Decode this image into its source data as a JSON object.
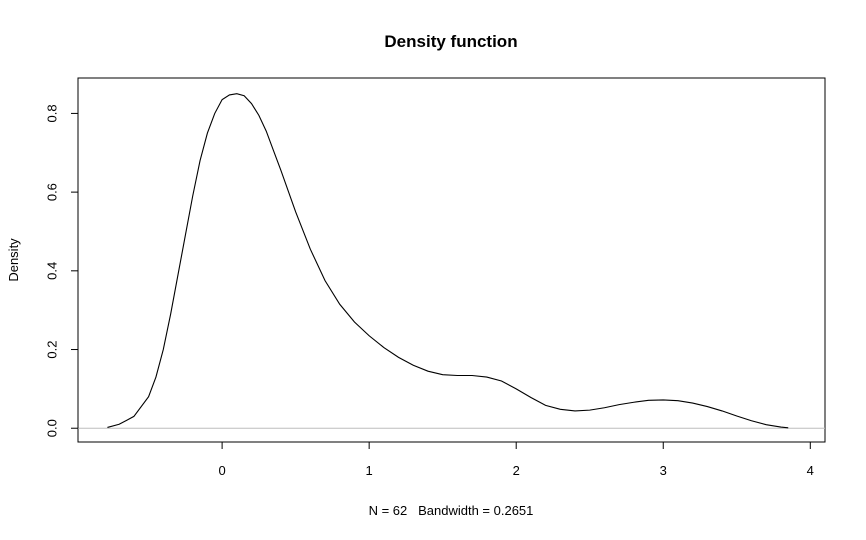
{
  "chart_data": {
    "type": "line",
    "title": "Density function",
    "xlabel": "N = 62   Bandwidth = 0.2651",
    "ylabel": "Density",
    "xlim": [
      -0.98,
      4.1
    ],
    "ylim": [
      -0.035,
      0.89
    ],
    "x_ticks": [
      "0",
      "1",
      "2",
      "3",
      "4"
    ],
    "x_tick_values": [
      0,
      1,
      2,
      3,
      4
    ],
    "y_ticks": [
      "0.0",
      "0.2",
      "0.4",
      "0.6",
      "0.8"
    ],
    "y_tick_values": [
      0,
      0.2,
      0.4,
      0.6,
      0.8
    ],
    "grid": false,
    "baseline_y": 0,
    "baseline_color": "#bebebe",
    "line_color": "#000000",
    "series": [
      {
        "x": [
          -0.78,
          -0.7,
          -0.6,
          -0.5,
          -0.45,
          -0.4,
          -0.35,
          -0.3,
          -0.25,
          -0.2,
          -0.15,
          -0.1,
          -0.05,
          0,
          0.05,
          0.1,
          0.15,
          0.2,
          0.25,
          0.3,
          0.35,
          0.4,
          0.5,
          0.6,
          0.7,
          0.8,
          0.9,
          1.0,
          1.1,
          1.2,
          1.3,
          1.4,
          1.5,
          1.6,
          1.7,
          1.8,
          1.9,
          2.0,
          2.1,
          2.2,
          2.3,
          2.4,
          2.5,
          2.6,
          2.7,
          2.8,
          2.9,
          3.0,
          3.1,
          3.2,
          3.3,
          3.4,
          3.5,
          3.6,
          3.7,
          3.8,
          3.85
        ],
        "y": [
          0.002,
          0.01,
          0.03,
          0.08,
          0.13,
          0.2,
          0.29,
          0.39,
          0.49,
          0.59,
          0.68,
          0.75,
          0.8,
          0.835,
          0.847,
          0.85,
          0.845,
          0.825,
          0.795,
          0.755,
          0.705,
          0.655,
          0.55,
          0.455,
          0.375,
          0.315,
          0.27,
          0.235,
          0.205,
          0.18,
          0.16,
          0.145,
          0.136,
          0.134,
          0.134,
          0.13,
          0.12,
          0.1,
          0.078,
          0.058,
          0.048,
          0.044,
          0.046,
          0.052,
          0.06,
          0.066,
          0.071,
          0.072,
          0.07,
          0.064,
          0.055,
          0.044,
          0.031,
          0.019,
          0.009,
          0.003,
          0.001
        ]
      }
    ]
  }
}
